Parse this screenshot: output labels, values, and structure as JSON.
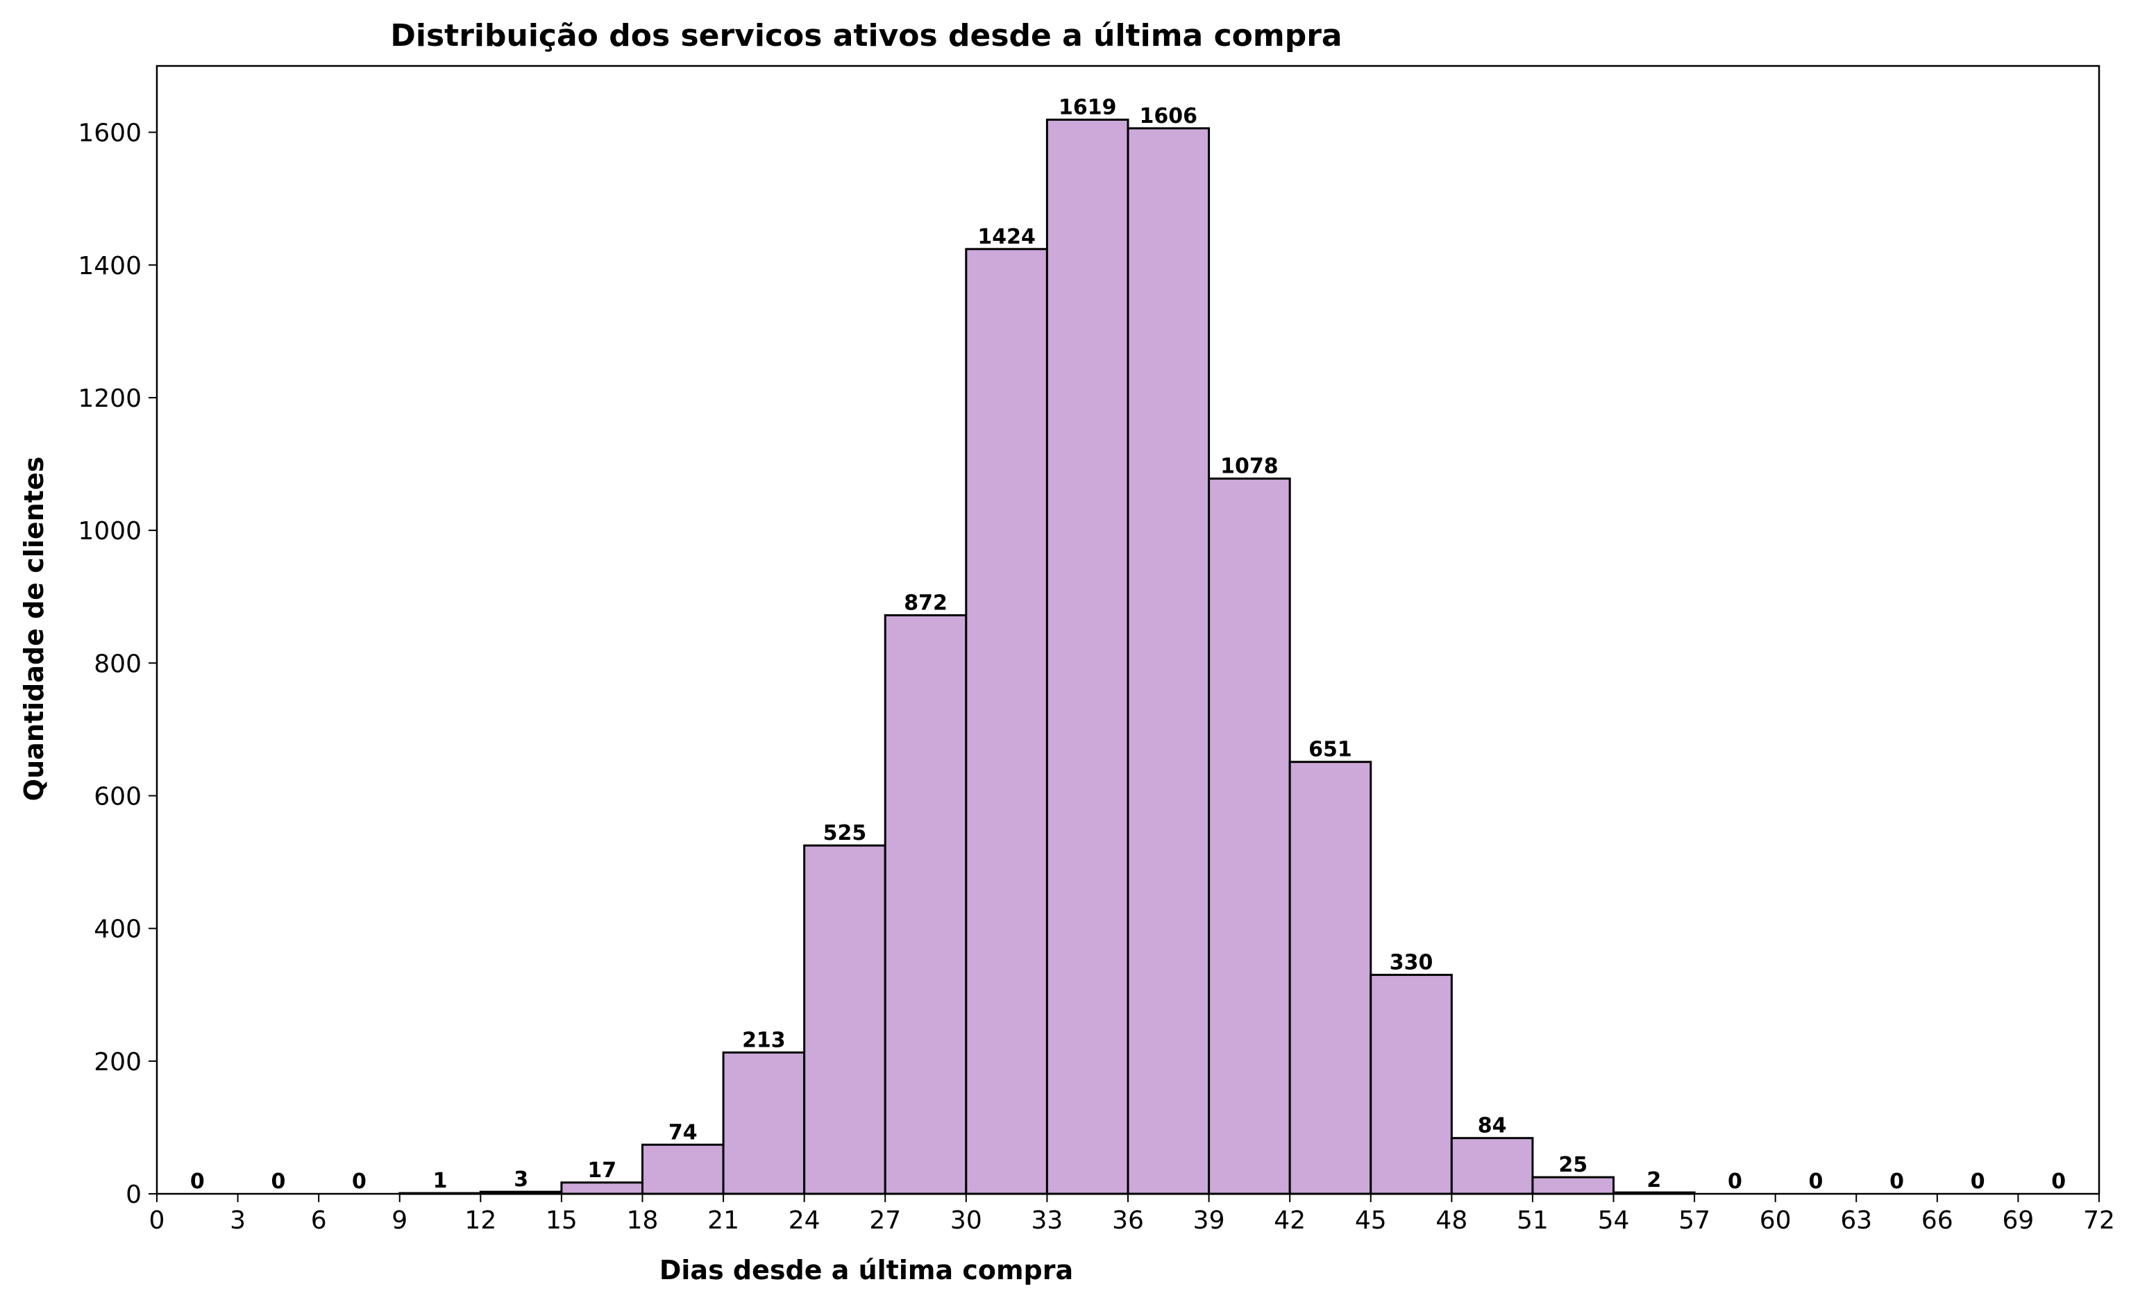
{
  "chart_data": {
    "type": "bar",
    "title": "Distribuição dos servicos ativos desde a última compra",
    "xlabel": "Dias desde a última compra",
    "ylabel": "Quantidade de clientes",
    "bin_edges": [
      0,
      3,
      6,
      9,
      12,
      15,
      18,
      21,
      24,
      27,
      30,
      33,
      36,
      39,
      42,
      45,
      48,
      51,
      54,
      57,
      60,
      63,
      66,
      69,
      72
    ],
    "values": [
      0,
      0,
      0,
      1,
      3,
      17,
      74,
      213,
      525,
      872,
      1424,
      1619,
      1606,
      1078,
      651,
      330,
      84,
      25,
      2,
      0,
      0,
      0,
      0,
      0
    ],
    "xlim": [
      0,
      72
    ],
    "ylim": [
      0,
      1700
    ],
    "x_ticks": [
      "0",
      "3",
      "6",
      "9",
      "12",
      "15",
      "18",
      "21",
      "24",
      "27",
      "30",
      "33",
      "36",
      "39",
      "42",
      "45",
      "48",
      "51",
      "54",
      "57",
      "60",
      "63",
      "66",
      "69",
      "72"
    ],
    "y_ticks": [
      "0",
      "200",
      "400",
      "600",
      "800",
      "1000",
      "1200",
      "1400",
      "1600"
    ],
    "bar_color": "#cda9da",
    "edge_color": "#000000",
    "grid": false,
    "legend": false
  }
}
